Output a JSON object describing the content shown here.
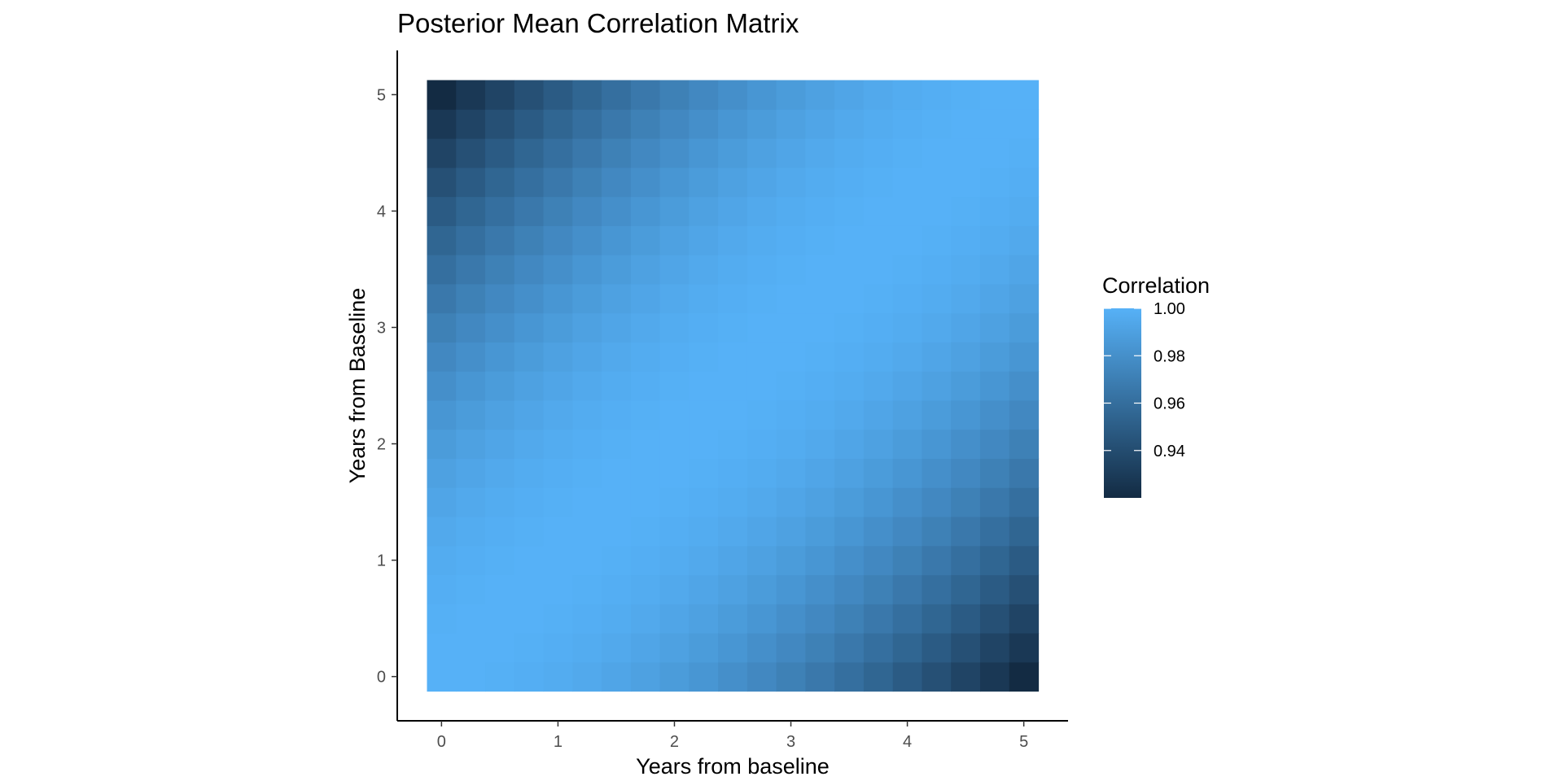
{
  "chart_data": {
    "type": "heatmap",
    "title": "Posterior Mean Correlation Matrix",
    "xlabel": "Years from baseline",
    "ylabel": "Years from Baseline",
    "x_ticks": [
      0,
      1,
      2,
      3,
      4,
      5
    ],
    "y_ticks": [
      0,
      1,
      2,
      3,
      4,
      5
    ],
    "xlim": [
      -0.38,
      5.38
    ],
    "ylim": [
      -0.38,
      5.38
    ],
    "grid_resolution": 21,
    "x_range": [
      0,
      5
    ],
    "y_range": [
      0,
      5
    ],
    "correlation_model": {
      "form": "1 - (1 - min_corr) * ((x - y) / 5)^2",
      "min_corr": 0.92,
      "diagonal": 1.0,
      "corner_0_5": 0.92
    },
    "legend": {
      "title": "Correlation",
      "position": "right",
      "range": [
        0.92,
        1.0
      ],
      "ticks": [
        {
          "value": 1.0,
          "label": "1.00"
        },
        {
          "value": 0.98,
          "label": "0.98"
        },
        {
          "value": 0.96,
          "label": "0.96"
        },
        {
          "value": 0.94,
          "label": "0.94"
        }
      ],
      "low_color": "#132B43",
      "high_color": "#56B1F7"
    },
    "grid": false
  }
}
